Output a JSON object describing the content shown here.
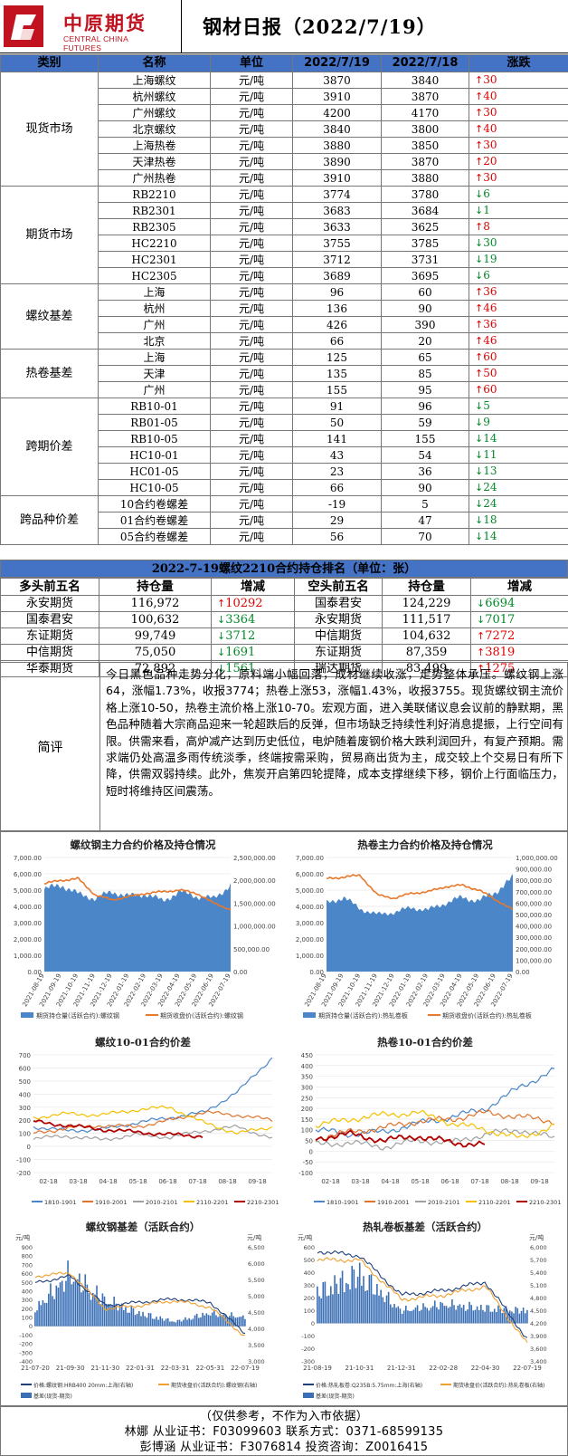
{
  "header": {
    "logo_cn": "中原期货",
    "logo_en": "CENTRAL CHINA FUTURES",
    "title": "钢材日报（2022/7/19）"
  },
  "table": {
    "columns": [
      "类别",
      "名称",
      "单位",
      "2022/7/19",
      "2022/7/18",
      "涨跌"
    ],
    "groups": [
      {
        "category": "现货市场",
        "rows": [
          {
            "name": "上海螺纹",
            "unit": "元/吨",
            "cur": "3870",
            "prev": "3840",
            "dir": "up",
            "chg": "30"
          },
          {
            "name": "杭州螺纹",
            "unit": "元/吨",
            "cur": "3910",
            "prev": "3870",
            "dir": "up",
            "chg": "40"
          },
          {
            "name": "广州螺纹",
            "unit": "元/吨",
            "cur": "4200",
            "prev": "4170",
            "dir": "up",
            "chg": "30"
          },
          {
            "name": "北京螺纹",
            "unit": "元/吨",
            "cur": "3840",
            "prev": "3800",
            "dir": "up",
            "chg": "40"
          },
          {
            "name": "上海热卷",
            "unit": "元/吨",
            "cur": "3880",
            "prev": "3850",
            "dir": "up",
            "chg": "30"
          },
          {
            "name": "天津热卷",
            "unit": "元/吨",
            "cur": "3890",
            "prev": "3870",
            "dir": "up",
            "chg": "20"
          },
          {
            "name": "广州热卷",
            "unit": "元/吨",
            "cur": "3910",
            "prev": "3880",
            "dir": "up",
            "chg": "30"
          }
        ]
      },
      {
        "category": "期货市场",
        "rows": [
          {
            "name": "RB2210",
            "unit": "元/吨",
            "cur": "3774",
            "prev": "3780",
            "dir": "dn",
            "chg": "6"
          },
          {
            "name": "RB2301",
            "unit": "元/吨",
            "cur": "3683",
            "prev": "3684",
            "dir": "dn",
            "chg": "1"
          },
          {
            "name": "RB2305",
            "unit": "元/吨",
            "cur": "3633",
            "prev": "3625",
            "dir": "up",
            "chg": "8"
          },
          {
            "name": "HC2210",
            "unit": "元/吨",
            "cur": "3755",
            "prev": "3785",
            "dir": "dn",
            "chg": "30"
          },
          {
            "name": "HC2301",
            "unit": "元/吨",
            "cur": "3712",
            "prev": "3731",
            "dir": "dn",
            "chg": "19"
          },
          {
            "name": "HC2305",
            "unit": "元/吨",
            "cur": "3689",
            "prev": "3695",
            "dir": "dn",
            "chg": "6"
          }
        ]
      },
      {
        "category": "螺纹基差",
        "rows": [
          {
            "name": "上海",
            "unit": "元/吨",
            "cur": "96",
            "prev": "60",
            "dir": "up",
            "chg": "36"
          },
          {
            "name": "杭州",
            "unit": "元/吨",
            "cur": "136",
            "prev": "90",
            "dir": "up",
            "chg": "46"
          },
          {
            "name": "广州",
            "unit": "元/吨",
            "cur": "426",
            "prev": "390",
            "dir": "up",
            "chg": "36"
          },
          {
            "name": "北京",
            "unit": "元/吨",
            "cur": "66",
            "prev": "20",
            "dir": "up",
            "chg": "46"
          }
        ]
      },
      {
        "category": "热卷基差",
        "rows": [
          {
            "name": "上海",
            "unit": "元/吨",
            "cur": "125",
            "prev": "65",
            "dir": "up",
            "chg": "60"
          },
          {
            "name": "天津",
            "unit": "元/吨",
            "cur": "135",
            "prev": "85",
            "dir": "up",
            "chg": "50"
          },
          {
            "name": "广州",
            "unit": "元/吨",
            "cur": "155",
            "prev": "95",
            "dir": "up",
            "chg": "60"
          }
        ]
      },
      {
        "category": "跨期价差",
        "rows": [
          {
            "name": "RB10-01",
            "unit": "元/吨",
            "cur": "91",
            "prev": "96",
            "dir": "dn",
            "chg": "5"
          },
          {
            "name": "RB01-05",
            "unit": "元/吨",
            "cur": "50",
            "prev": "59",
            "dir": "dn",
            "chg": "9"
          },
          {
            "name": "RB10-05",
            "unit": "元/吨",
            "cur": "141",
            "prev": "155",
            "dir": "dn",
            "chg": "14"
          },
          {
            "name": "HC10-01",
            "unit": "元/吨",
            "cur": "43",
            "prev": "54",
            "dir": "dn",
            "chg": "11"
          },
          {
            "name": "HC01-05",
            "unit": "元/吨",
            "cur": "23",
            "prev": "36",
            "dir": "dn",
            "chg": "13"
          },
          {
            "name": "HC10-05",
            "unit": "元/吨",
            "cur": "66",
            "prev": "90",
            "dir": "dn",
            "chg": "24"
          }
        ]
      },
      {
        "category": "跨品种价差",
        "rows": [
          {
            "name": "10合约卷螺差",
            "unit": "元/吨",
            "cur": "-19",
            "prev": "5",
            "dir": "dn",
            "chg": "24"
          },
          {
            "name": "01合约卷螺差",
            "unit": "元/吨",
            "cur": "29",
            "prev": "47",
            "dir": "dn",
            "chg": "18"
          },
          {
            "name": "05合约卷螺差",
            "unit": "元/吨",
            "cur": "56",
            "prev": "70",
            "dir": "dn",
            "chg": "14"
          }
        ]
      }
    ]
  },
  "positions": {
    "title": "2022-7-19螺纹2210合约持仓排名（单位：张）",
    "headers": [
      "多头前五名",
      "持仓量",
      "增减",
      "空头前五名",
      "持仓量",
      "增减"
    ],
    "rows": [
      {
        "long": "永安期货",
        "lq": "116,972",
        "ld": "up",
        "lc": "10292",
        "short": "国泰君安",
        "sq": "124,229",
        "sd": "dn",
        "sc": "6694"
      },
      {
        "long": "国泰君安",
        "lq": "100,632",
        "ld": "dn",
        "lc": "3364",
        "short": "永安期货",
        "sq": "111,517",
        "sd": "dn",
        "sc": "7017"
      },
      {
        "long": "东证期货",
        "lq": "99,749",
        "ld": "dn",
        "lc": "3712",
        "short": "中信期货",
        "sq": "104,632",
        "sd": "up",
        "sc": "7272"
      },
      {
        "long": "中信期货",
        "lq": "75,050",
        "ld": "dn",
        "lc": "1691",
        "short": "东证期货",
        "sq": "87,359",
        "sd": "up",
        "sc": "3819"
      },
      {
        "long": "华泰期货",
        "lq": "72,892",
        "ld": "dn",
        "lc": "1561",
        "short": "瑞达期货",
        "sq": "83,499",
        "sd": "up",
        "sc": "1275"
      }
    ]
  },
  "comment": {
    "label": "简评",
    "text": "今日黑色品种走势分化，原料端小幅回落，成材继续收涨，走势整体承压。螺纹钢上涨64，涨幅1.73%，收报3774；热卷上涨53，涨幅1.43%，收报3755。现货螺纹钢主流价格上涨10-50，热卷主流价格上涨10-70。宏观方面，进入美联储议息会议前的静默期，黑色品种随着大宗商品迎来一轮超跌后的反弹，但市场缺乏持续性利好消息提振，上行空间有限。供需来看，高炉减产达到历史低位，电炉随着废钢价格大跌利润回升，有复产预期。需求端仍处高温多雨传统淡季，终端按需采购，贸易商出货为主，成交较上个交易日有所下降，供需双弱持续。此外，焦炭开启第四轮提降，成本支撑继续下移，钢价上行面临压力，短时将维持区间震荡。"
  },
  "charts": [
    {
      "title": "螺纹钢主力合约价格及持仓情况",
      "type": "area",
      "chart_data": {
        "type": "area",
        "x": [
          "2021-08-19",
          "2021-09-19",
          "2021-10-19",
          "2021-11-19",
          "2021-12-19",
          "2022-01-19",
          "2022-02-19",
          "2022-03-19",
          "2022-04-19",
          "2022-05-19",
          "2022-06-19",
          "2022-07-19"
        ],
        "series": [
          {
            "name": "期货持仓量(活跃合约):螺纹钢",
            "axis": "right",
            "values": [
              1800000,
              1900000,
              1700000,
              1600000,
              1750000,
              1650000,
              1700000,
              1550000,
              1750000,
              1650000,
              1600000,
              1900000
            ]
          },
          {
            "name": "期货收盘价(活跃合约):螺纹钢",
            "axis": "left",
            "values": [
              5400,
              5600,
              5700,
              4700,
              4400,
              4600,
              4800,
              4900,
              5000,
              4800,
              4200,
              3800
            ]
          }
        ],
        "ylim_left": [
          0,
          7000
        ],
        "ylim_right": [
          0,
          2500000
        ],
        "left_ticks": [
          "7,000.00",
          "6,000.00",
          "5,000.00",
          "4,000.00",
          "3,000.00",
          "2,000.00",
          "1,000.00",
          "0.00"
        ],
        "right_ticks": [
          "2,500,000.00",
          "2,000,000.00",
          "1,500,000.00",
          "1,000,000.00",
          "500,000.00",
          "0.00"
        ]
      }
    },
    {
      "title": "热卷主力合约价格及持仓情况",
      "type": "area",
      "chart_data": {
        "type": "area",
        "x": [
          "2021-08-19",
          "2021-09-19",
          "2021-10-19",
          "2021-11-19",
          "2021-12-19",
          "2022-01-19",
          "2022-02-19",
          "2022-03-19",
          "2022-04-19",
          "2022-05-19",
          "2022-06-19",
          "2022-07-19"
        ],
        "series": [
          {
            "name": "期货持仓量(活跃合约):热轧卷板",
            "axis": "right",
            "values": [
              600000,
              650000,
              550000,
              500000,
              520000,
              560000,
              540000,
              600000,
              650000,
              620000,
              700000,
              820000
            ]
          },
          {
            "name": "期货收盘价(活跃合约):热轧卷板",
            "axis": "left",
            "values": [
              5700,
              5800,
              5900,
              4700,
              4500,
              4800,
              4900,
              5200,
              5300,
              5000,
              4400,
              3800
            ]
          }
        ],
        "ylim_left": [
          0,
          7000
        ],
        "ylim_right": [
          0,
          1000000
        ],
        "left_ticks": [
          "7,000.00",
          "6,000.00",
          "5,000.00",
          "4,000.00",
          "3,000.00",
          "2,000.00",
          "1,000.00",
          "0.00"
        ],
        "right_ticks": [
          "1,000,000.00",
          "900,000.00",
          "800,000.00",
          "700,000.00",
          "600,000.00",
          "500,000.00",
          "400,000.00",
          "300,000.00",
          "200,000.00",
          "100,000.00",
          "0.00"
        ]
      }
    },
    {
      "title": "螺纹10-01合约价差",
      "type": "line",
      "chart_data": {
        "type": "line",
        "x": [
          "02-18",
          "03-18",
          "04-18",
          "05-18",
          "06-18",
          "07-18",
          "08-18",
          "09-18"
        ],
        "series": [
          {
            "name": "1810-1901",
            "color": "#4a86c8",
            "values": [
              150,
              120,
              130,
              180,
              220,
              260,
              420,
              680
            ]
          },
          {
            "name": "1910-2001",
            "color": "#e0732c",
            "values": [
              100,
              140,
              160,
              150,
              200,
              260,
              240,
              200
            ]
          },
          {
            "name": "2010-2101",
            "color": "#a0a0a0",
            "values": [
              60,
              80,
              50,
              90,
              70,
              120,
              150,
              60
            ]
          },
          {
            "name": "2110-2201",
            "color": "#f5c000",
            "values": [
              220,
              250,
              240,
              280,
              300,
              180,
              100,
              150
            ]
          },
          {
            "name": "2210-2301",
            "color": "#b00000",
            "values": [
              190,
              160,
              130,
              110,
              90,
              80,
              null,
              null
            ]
          }
        ],
        "ylim": [
          -200,
          700
        ],
        "ticks": [
          "700",
          "600",
          "500",
          "400",
          "300",
          "200",
          "100",
          "0",
          "-100",
          "-200"
        ]
      }
    },
    {
      "title": "热卷10-01合约价差",
      "type": "line",
      "chart_data": {
        "type": "line",
        "x": [
          "02-18",
          "03-18",
          "04-18",
          "05-18",
          "06-18",
          "07-18",
          "08-18",
          "09-18"
        ],
        "series": [
          {
            "name": "1810-1901",
            "color": "#4a86c8",
            "values": [
              100,
              80,
              90,
              130,
              160,
              200,
              300,
              380
            ]
          },
          {
            "name": "1910-2001",
            "color": "#e0732c",
            "values": [
              60,
              90,
              110,
              140,
              150,
              180,
              160,
              140
            ]
          },
          {
            "name": "2010-2101",
            "color": "#a0a0a0",
            "values": [
              30,
              40,
              20,
              50,
              40,
              80,
              100,
              60
            ]
          },
          {
            "name": "2110-2201",
            "color": "#f5c000",
            "values": [
              120,
              150,
              170,
              180,
              130,
              100,
              60,
              120
            ]
          },
          {
            "name": "2210-2301",
            "color": "#b00000",
            "values": [
              60,
              80,
              50,
              70,
              40,
              30,
              null,
              null
            ]
          }
        ],
        "ylim": [
          -100,
          450
        ],
        "ticks": [
          "450",
          "400",
          "350",
          "300",
          "250",
          "200",
          "150",
          "100",
          "50",
          "0",
          "-50",
          "-100"
        ]
      }
    },
    {
      "title": "螺纹钢基差（活跃合约）",
      "type": "basis",
      "chart_data": {
        "type": "bar",
        "x": [
          "21-07-20",
          "21-09-30",
          "21-11-30",
          "22-01-31",
          "22-03-31",
          "22-05-31",
          "22-07-19"
        ],
        "series": [
          {
            "name": "价格:螺纹钢:HRB400 20mm:上海(右轴)",
            "axis": "right",
            "values": [
              5400,
              5600,
              4700,
              4800,
              4900,
              4800,
              3850
            ]
          },
          {
            "name": "期货收盘价(活跃合约):螺纹钢(右轴)",
            "axis": "right",
            "values": [
              5600,
              5700,
              4600,
              4700,
              4850,
              4650,
              3750
            ]
          },
          {
            "name": "基差(现货-期货)",
            "axis": "left",
            "values": [
              200,
              600,
              300,
              150,
              50,
              150,
              100
            ]
          }
        ],
        "ylim_left": [
          -400,
          900
        ],
        "ylim_right": [
          3000,
          6500
        ],
        "left_unit": "元/吨",
        "right_unit": "元/吨",
        "left_ticks": [
          "900",
          "800",
          "700",
          "600",
          "500",
          "400",
          "300",
          "200",
          "100",
          "0",
          "-100",
          "-200",
          "-300",
          "-400"
        ],
        "right_ticks": [
          "6,500",
          "6,000",
          "5,500",
          "5,000",
          "4,500",
          "4,000",
          "3,500",
          "3,000"
        ]
      }
    },
    {
      "title": "热轧卷板基差（活跃合约）",
      "type": "basis",
      "chart_data": {
        "type": "bar",
        "x": [
          "21-08-19",
          "21-10-31",
          "21-12-31",
          "22-02-28",
          "22-04-30",
          "22-07-19"
        ],
        "series": [
          {
            "name": "价格:热轧板卷:Q235B:5.75mm:上海(右轴)",
            "axis": "right",
            "values": [
              5900,
              5800,
              4900,
              5000,
              5200,
              3900
            ]
          },
          {
            "name": "期货收盘价(活跃合约):热轧卷板(右轴)",
            "axis": "right",
            "values": [
              5700,
              5700,
              4800,
              4900,
              5100,
              3780
            ]
          },
          {
            "name": "基差(现货-期货)",
            "axis": "left",
            "values": [
              250,
              400,
              100,
              150,
              120,
              100
            ]
          }
        ],
        "ylim_left": [
          -300,
          600
        ],
        "ylim_right": [
          3400,
          6000
        ],
        "left_unit": "元/吨",
        "right_unit": "元/吨",
        "left_ticks": [
          "600",
          "500",
          "400",
          "300",
          "200",
          "100",
          "0",
          "-100",
          "-200",
          "-300"
        ],
        "right_ticks": [
          "6,000",
          "5,700",
          "5,400",
          "5,100",
          "4,800",
          "4,500",
          "4,200",
          "3,900",
          "3,600",
          "3,400"
        ]
      }
    }
  ],
  "footer": {
    "l1": "（仅供参考，不作为入市依据）",
    "l2": "林娜  从业证书：F03099603  联系方式：0371-68599135",
    "l3": "彭博涵  从业证书：F3076814  投资咨询：Z0016415"
  }
}
